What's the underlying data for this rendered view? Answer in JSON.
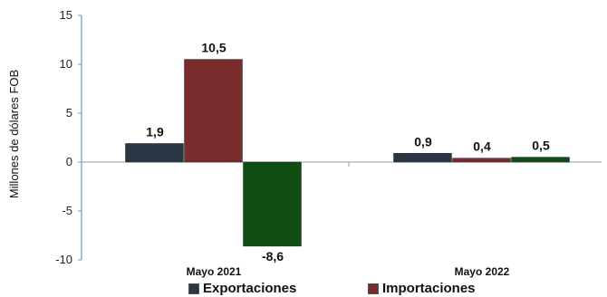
{
  "chart_data": {
    "type": "bar",
    "ylabel": "Millones de dólares FOB",
    "ylim": [
      -10,
      15
    ],
    "yticks": [
      -10,
      -5,
      0,
      5,
      10,
      15
    ],
    "categories": [
      "Mayo 2021",
      "Mayo 2022"
    ],
    "series": [
      {
        "name": "Exportaciones",
        "color": "#2b3644",
        "values": [
          1.9,
          0.9
        ],
        "labels": [
          "1,9",
          "0,9"
        ]
      },
      {
        "name": "Importaciones",
        "color": "#7a2b2b",
        "values": [
          10.5,
          0.4
        ],
        "labels": [
          "10,5",
          "0,4"
        ]
      },
      {
        "name": "",
        "color": "#0f4d12",
        "values": [
          -8.6,
          0.5
        ],
        "labels": [
          "-8,6",
          "0,5"
        ]
      }
    ],
    "grid": false,
    "legend": "bottom"
  }
}
